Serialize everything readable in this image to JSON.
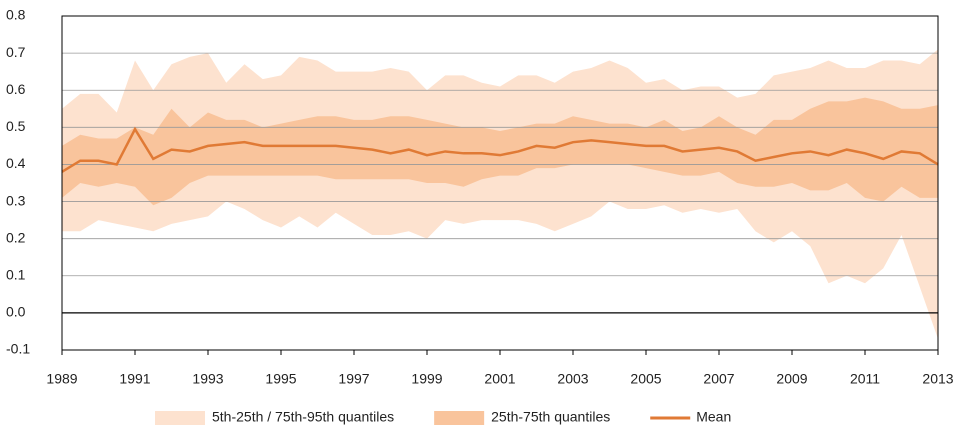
{
  "chart_data": {
    "type": "line",
    "x": [
      1989,
      1989.5,
      1990,
      1990.5,
      1991,
      1991.5,
      1992,
      1992.5,
      1993,
      1993.5,
      1994,
      1994.5,
      1995,
      1995.5,
      1996,
      1996.5,
      1997,
      1997.5,
      1998,
      1998.5,
      1999,
      1999.5,
      2000,
      2000.5,
      2001,
      2001.5,
      2002,
      2002.5,
      2003,
      2003.5,
      2004,
      2004.5,
      2005,
      2005.5,
      2006,
      2006.5,
      2007,
      2007.5,
      2008,
      2008.5,
      2009,
      2009.5,
      2010,
      2010.5,
      2011,
      2011.5,
      2012,
      2012.5,
      2013
    ],
    "bands": [
      {
        "name": "5th-25th / 75th-95th quantiles",
        "color": "#fde2cf",
        "lower": [
          0.22,
          0.22,
          0.25,
          0.24,
          0.23,
          0.22,
          0.24,
          0.25,
          0.26,
          0.3,
          0.28,
          0.25,
          0.23,
          0.26,
          0.23,
          0.27,
          0.24,
          0.21,
          0.21,
          0.22,
          0.2,
          0.25,
          0.24,
          0.25,
          0.25,
          0.25,
          0.24,
          0.22,
          0.24,
          0.26,
          0.3,
          0.28,
          0.28,
          0.29,
          0.27,
          0.28,
          0.27,
          0.28,
          0.22,
          0.19,
          0.22,
          0.18,
          0.08,
          0.1,
          0.08,
          0.12,
          0.21,
          0.07,
          -0.07
        ],
        "upper": [
          0.55,
          0.59,
          0.59,
          0.54,
          0.68,
          0.6,
          0.67,
          0.69,
          0.7,
          0.62,
          0.67,
          0.63,
          0.64,
          0.69,
          0.68,
          0.65,
          0.65,
          0.65,
          0.66,
          0.65,
          0.6,
          0.64,
          0.64,
          0.62,
          0.61,
          0.64,
          0.64,
          0.62,
          0.65,
          0.66,
          0.68,
          0.66,
          0.62,
          0.63,
          0.6,
          0.61,
          0.61,
          0.58,
          0.59,
          0.64,
          0.65,
          0.66,
          0.68,
          0.66,
          0.66,
          0.68,
          0.68,
          0.67,
          0.71
        ]
      },
      {
        "name": "25th-75th quantiles",
        "color": "#f9c49c",
        "lower": [
          0.31,
          0.35,
          0.34,
          0.35,
          0.34,
          0.29,
          0.31,
          0.35,
          0.37,
          0.37,
          0.37,
          0.37,
          0.37,
          0.37,
          0.37,
          0.36,
          0.36,
          0.36,
          0.36,
          0.36,
          0.35,
          0.35,
          0.34,
          0.36,
          0.37,
          0.37,
          0.39,
          0.39,
          0.4,
          0.4,
          0.4,
          0.4,
          0.39,
          0.38,
          0.37,
          0.37,
          0.38,
          0.35,
          0.34,
          0.34,
          0.35,
          0.33,
          0.33,
          0.35,
          0.31,
          0.3,
          0.34,
          0.31,
          0.31
        ],
        "upper": [
          0.45,
          0.48,
          0.47,
          0.47,
          0.5,
          0.48,
          0.55,
          0.5,
          0.54,
          0.52,
          0.52,
          0.5,
          0.51,
          0.52,
          0.53,
          0.53,
          0.52,
          0.52,
          0.53,
          0.53,
          0.52,
          0.51,
          0.5,
          0.5,
          0.49,
          0.5,
          0.51,
          0.51,
          0.53,
          0.52,
          0.51,
          0.51,
          0.5,
          0.52,
          0.49,
          0.5,
          0.53,
          0.5,
          0.48,
          0.52,
          0.52,
          0.55,
          0.57,
          0.57,
          0.58,
          0.57,
          0.55,
          0.55,
          0.56
        ]
      }
    ],
    "series": [
      {
        "name": "Mean",
        "color": "#e07a35",
        "values": [
          0.38,
          0.41,
          0.41,
          0.4,
          0.495,
          0.415,
          0.44,
          0.435,
          0.45,
          0.455,
          0.46,
          0.45,
          0.45,
          0.45,
          0.45,
          0.45,
          0.445,
          0.44,
          0.43,
          0.44,
          0.425,
          0.435,
          0.43,
          0.43,
          0.425,
          0.435,
          0.45,
          0.445,
          0.46,
          0.465,
          0.46,
          0.455,
          0.45,
          0.45,
          0.435,
          0.44,
          0.445,
          0.435,
          0.41,
          0.42,
          0.43,
          0.435,
          0.425,
          0.44,
          0.43,
          0.415,
          0.435,
          0.43,
          0.4
        ]
      }
    ],
    "xlim": [
      1989,
      2013
    ],
    "xticks": [
      1989,
      1991,
      1993,
      1995,
      1997,
      1999,
      2001,
      2003,
      2005,
      2007,
      2009,
      2011,
      2013
    ],
    "ylim": [
      -0.1,
      0.8
    ],
    "yticks": [
      0.8,
      0.7,
      0.6,
      0.5,
      0.4,
      0.3,
      0.2,
      0.1,
      {
        "value": 0,
        "label": "0.0"
      },
      -0.1
    ],
    "grid": true
  }
}
